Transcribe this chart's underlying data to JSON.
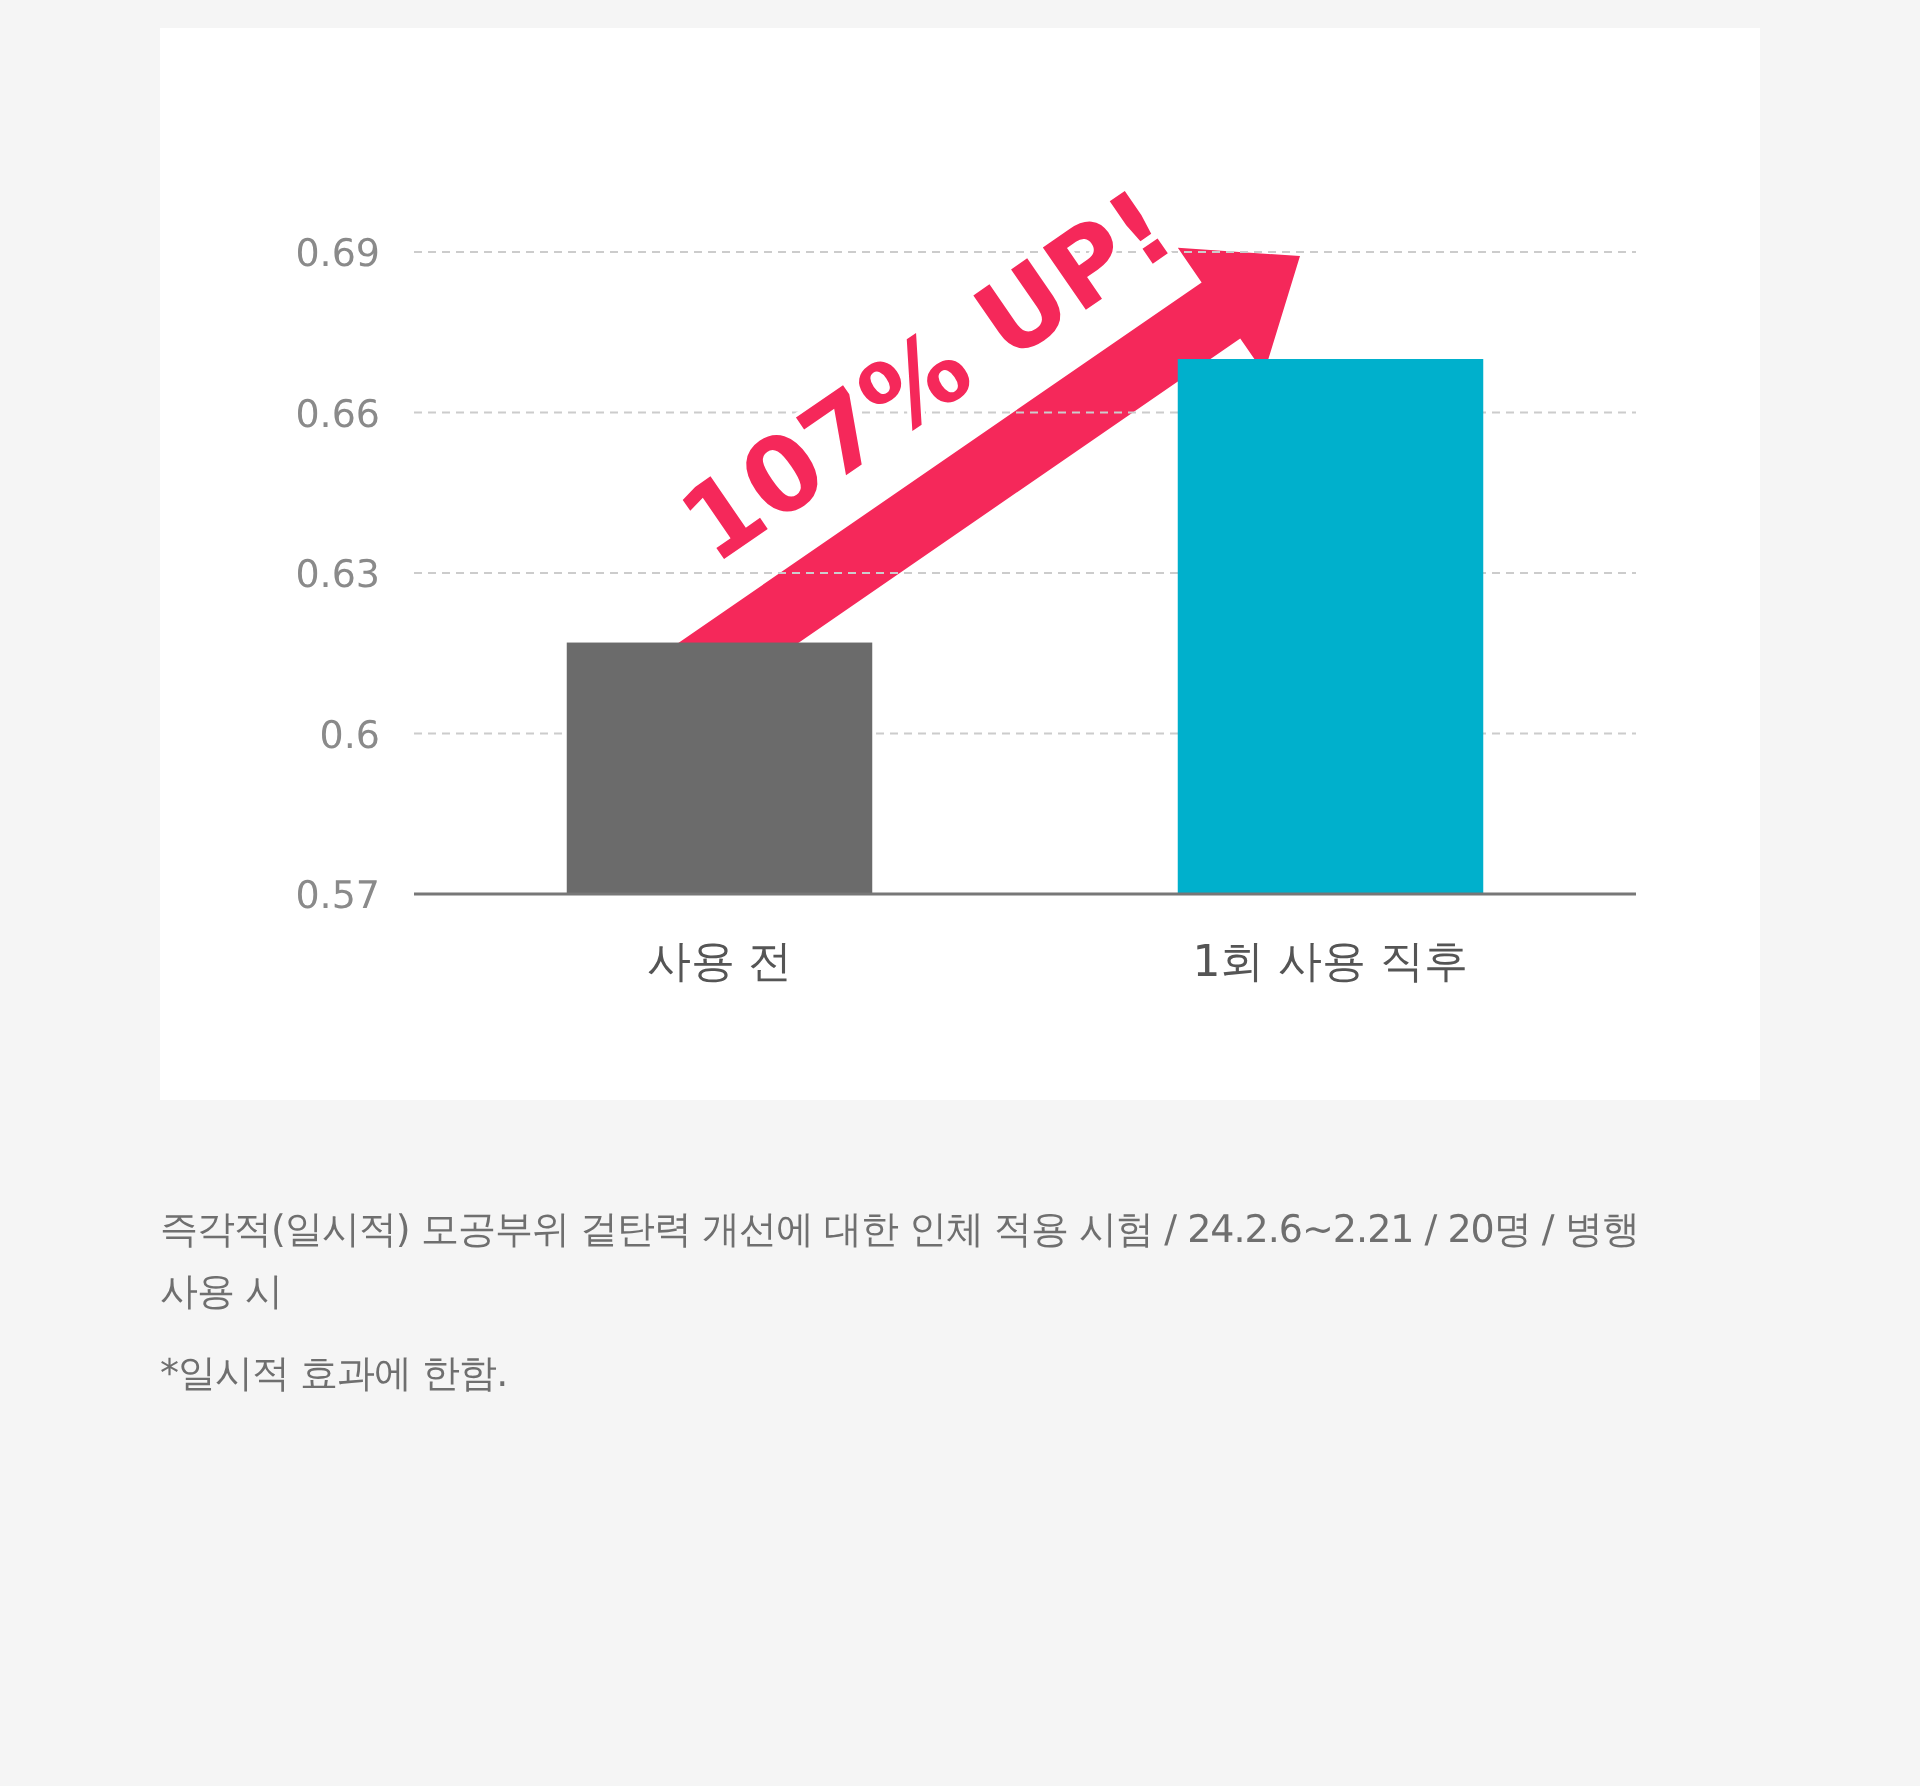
{
  "chart_data": {
    "type": "bar",
    "categories": [
      "사용 전",
      "1회 사용 직후"
    ],
    "values": [
      0.617,
      0.67
    ],
    "colors": [
      "#6b6b6b",
      "#00b0cc"
    ],
    "ylim": [
      0.57,
      0.69
    ],
    "yticks": [
      0.57,
      {
        "value": 0.6,
        "label": "0.6"
      },
      0.63,
      0.66,
      0.69
    ],
    "grid": "y",
    "annotations": [
      "107% UP!",
      "즉각적(일시적) 모공부위 겉탄력 개선에 대한 인체 적용 시험 / 24.2.6~2.21 / 20명 / 병행 사용 시",
      "*일시적 효과에 한함."
    ]
  }
}
